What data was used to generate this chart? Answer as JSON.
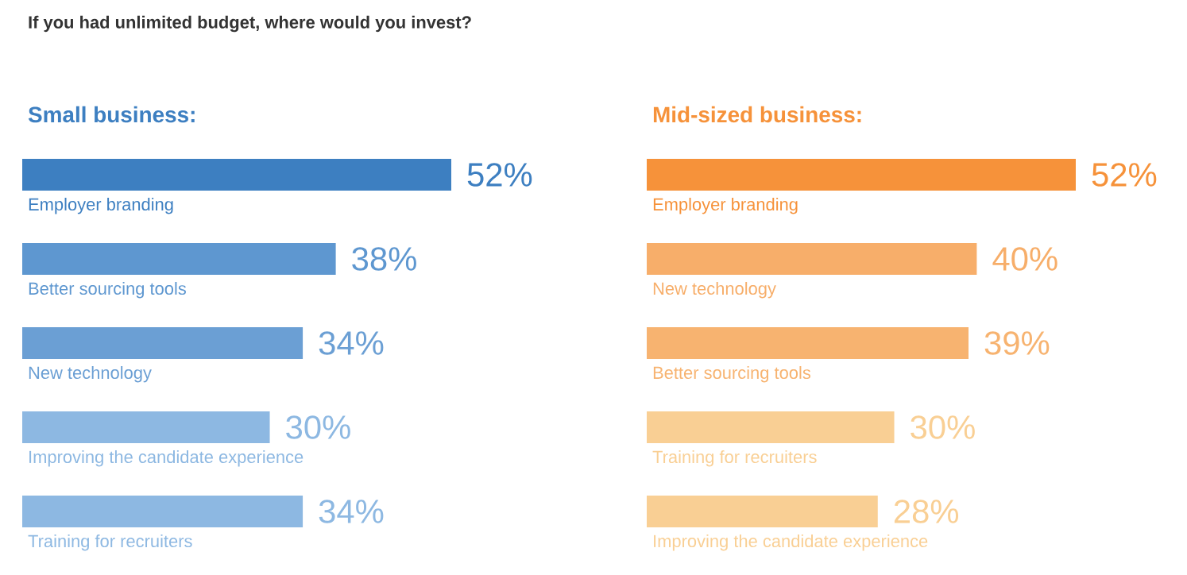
{
  "chart_data": [
    {
      "type": "bar",
      "orientation": "horizontal",
      "title": "If you had unlimited budget, where would you invest?",
      "subtitle": "Small business:",
      "categories": [
        "Employer branding",
        "Better sourcing tools",
        "New technology",
        "Improving the candidate experience",
        "Training for recruiters"
      ],
      "values": [
        52,
        38,
        34,
        30,
        34
      ],
      "value_labels": [
        "52%",
        "38%",
        "34%",
        "30%",
        "34%"
      ],
      "colors": [
        "#3d7fc1",
        "#5e97d0",
        "#6b9fd4",
        "#8db8e2",
        "#8db8e2"
      ]
    },
    {
      "type": "bar",
      "orientation": "horizontal",
      "subtitle": "Mid-sized business:",
      "categories": [
        "Employer branding",
        "New technology",
        "Better sourcing tools",
        "Training for recruiters",
        "Improving the candidate experience"
      ],
      "values": [
        52,
        40,
        39,
        30,
        28
      ],
      "value_labels": [
        "52%",
        "40%",
        "39%",
        "30%",
        "28%"
      ],
      "colors": [
        "#f6923a",
        "#f7ae6a",
        "#f7b370",
        "#f9cf94",
        "#f9cf94"
      ]
    }
  ]
}
